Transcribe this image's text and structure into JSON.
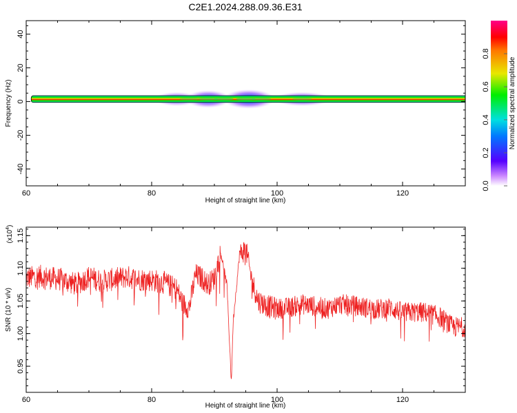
{
  "title": "C2E1.2024.288.09.36.E31",
  "colors": {
    "snr_line": "#ee2222",
    "axes": "#000000",
    "background": "#ffffff"
  },
  "chart_data": [
    {
      "type": "heatmap",
      "title": "C2E1.2024.288.09.36.E31",
      "xlabel": "Height of straight line (km)",
      "ylabel": "Frequency (Hz)",
      "xlim": [
        60,
        130
      ],
      "ylim": [
        -50,
        48
      ],
      "xticks": [
        "60",
        "80",
        "100",
        "120"
      ],
      "yticks": [
        "40",
        "20",
        "0",
        "-20",
        "-40"
      ],
      "grid": false,
      "colorbar": {
        "label": "Normalized spectral amplitude",
        "range": [
          0.0,
          1.0
        ],
        "ticks": [
          "0.0",
          "0.2",
          "0.4",
          "0.6",
          "0.8"
        ],
        "colormap": "rainbow"
      },
      "band": {
        "x_start": 60.8,
        "x_end": 130,
        "center_frequency": 1.5,
        "core_half_width_hz": 2,
        "outline_color": "#000000"
      },
      "spread_regions": [
        {
          "x_start": 81,
          "x_end": 87,
          "amplitude": 0.15,
          "half_width_hz": 3
        },
        {
          "x_start": 86,
          "x_end": 92,
          "amplitude": 0.3,
          "half_width_hz": 4
        },
        {
          "x_start": 92,
          "x_end": 99,
          "amplitude": 0.35,
          "half_width_hz": 4.5
        },
        {
          "x_start": 100,
          "x_end": 108,
          "amplitude": 0.2,
          "half_width_hz": 3
        }
      ]
    },
    {
      "type": "line",
      "xlabel": "Height of straight line (km)",
      "ylabel": "SNR (10 * v/v)",
      "scale_label": "(x10",
      "scale_exponent": "4",
      "scale_suffix": ")",
      "xlim": [
        60,
        130
      ],
      "ylim": [
        0.91,
        1.163
      ],
      "xticks": [
        "60",
        "80",
        "100",
        "120"
      ],
      "yticks": [
        "1.15",
        "1.10",
        "1.05",
        "1.00",
        "0.95"
      ],
      "grid": false,
      "series": [
        {
          "color": "#ee2222",
          "x": [
            60,
            62,
            64,
            66,
            68,
            70,
            72,
            74,
            76,
            78,
            80,
            82,
            84,
            85,
            86,
            87,
            88,
            89,
            90,
            91,
            92,
            92.7,
            93,
            94,
            95,
            96,
            97,
            98,
            99,
            100,
            102,
            104,
            106,
            108,
            110,
            112,
            114,
            116,
            118,
            120,
            122,
            124,
            126,
            128,
            130
          ],
          "values": [
            1.085,
            1.088,
            1.085,
            1.082,
            1.075,
            1.087,
            1.08,
            1.083,
            1.087,
            1.083,
            1.082,
            1.078,
            1.068,
            1.045,
            1.04,
            1.09,
            1.085,
            1.075,
            1.085,
            1.125,
            1.075,
            0.925,
            1.02,
            1.12,
            1.13,
            1.08,
            1.05,
            1.045,
            1.04,
            1.038,
            1.04,
            1.045,
            1.042,
            1.038,
            1.045,
            1.043,
            1.04,
            1.037,
            1.04,
            1.032,
            1.033,
            1.032,
            1.025,
            1.01,
            1.01
          ]
        }
      ]
    }
  ]
}
